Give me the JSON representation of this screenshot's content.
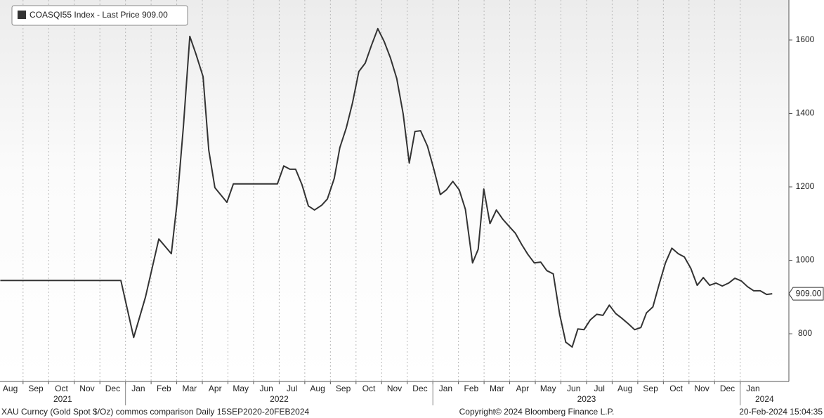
{
  "chart_data": {
    "type": "line",
    "series": [
      {
        "name": "COASQI55 Index - Last Price 909.00",
        "color": "#333333",
        "x": [
          0.11,
          4.82,
          5.32,
          5.78,
          6.3,
          6.79,
          7.01,
          7.26,
          7.51,
          7.75,
          8.03,
          8.25,
          8.49,
          8.96,
          9.21,
          10.93,
          11.18,
          11.42,
          11.64,
          11.89,
          12.14,
          12.38,
          12.66,
          12.88,
          13.15,
          13.37,
          13.62,
          13.86,
          14.11,
          14.36,
          14.6,
          14.85,
          15.1,
          15.34,
          15.59,
          15.84,
          16.08,
          16.3,
          16.52,
          16.79,
          17.04,
          17.29,
          17.53,
          17.78,
          18.03,
          18.27,
          18.55,
          18.77,
          18.99,
          19.23,
          19.48,
          19.73,
          19.97,
          20.22,
          20.47,
          20.71,
          20.96,
          21.21,
          21.45,
          21.7,
          21.95,
          22.19,
          22.44,
          22.66,
          22.9,
          23.15,
          23.4,
          23.64,
          23.89,
          24.14,
          24.38,
          24.63,
          24.88,
          25.12,
          25.34,
          25.59,
          25.84,
          26.08,
          26.33,
          26.58,
          26.82,
          27.07,
          27.32,
          27.56,
          27.81,
          28.05,
          28.3,
          28.55,
          28.79,
          29.04,
          29.29,
          29.53,
          29.78,
          30.03,
          30.25
        ],
        "values": [
          945,
          945,
          790,
          900,
          1058,
          1018,
          1154,
          1365,
          1610,
          1562,
          1500,
          1300,
          1198,
          1158,
          1208,
          1208,
          1257,
          1248,
          1248,
          1206,
          1148,
          1137,
          1150,
          1167,
          1223,
          1307,
          1361,
          1428,
          1514,
          1537,
          1585,
          1631,
          1596,
          1552,
          1495,
          1399,
          1265,
          1351,
          1353,
          1311,
          1248,
          1179,
          1192,
          1215,
          1192,
          1139,
          993,
          1030,
          1194,
          1100,
          1137,
          1112,
          1093,
          1074,
          1043,
          1016,
          993,
          995,
          972,
          963,
          853,
          777,
          764,
          813,
          811,
          838,
          853,
          850,
          878,
          855,
          842,
          827,
          811,
          817,
          857,
          873,
          936,
          993,
          1033,
          1018,
          1009,
          978,
          932,
          953,
          932,
          938,
          930,
          938,
          951,
          944,
          928,
          917,
          917,
          907,
          909
        ]
      }
    ],
    "last_value_tag": {
      "value": 909,
      "label": "909.00"
    },
    "xlim": [
      0.1,
      30.9
    ],
    "xticks": [
      {
        "value": 0,
        "label": "Aug"
      },
      {
        "value": 1,
        "label": "Sep"
      },
      {
        "value": 2,
        "label": "Oct"
      },
      {
        "value": 3,
        "label": "Nov"
      },
      {
        "value": 4,
        "label": "Dec"
      },
      {
        "value": 5,
        "label": "Jan"
      },
      {
        "value": 6,
        "label": "Feb"
      },
      {
        "value": 7,
        "label": "Mar"
      },
      {
        "value": 8,
        "label": "Apr"
      },
      {
        "value": 9,
        "label": "May"
      },
      {
        "value": 10,
        "label": "Jun"
      },
      {
        "value": 11,
        "label": "Jul"
      },
      {
        "value": 12,
        "label": "Aug"
      },
      {
        "value": 13,
        "label": "Sep"
      },
      {
        "value": 14,
        "label": "Oct"
      },
      {
        "value": 15,
        "label": "Nov"
      },
      {
        "value": 16,
        "label": "Dec"
      },
      {
        "value": 17,
        "label": "Jan"
      },
      {
        "value": 18,
        "label": "Feb"
      },
      {
        "value": 19,
        "label": "Mar"
      },
      {
        "value": 20,
        "label": "Apr"
      },
      {
        "value": 21,
        "label": "May"
      },
      {
        "value": 22,
        "label": "Jun"
      },
      {
        "value": 23,
        "label": "Jul"
      },
      {
        "value": 24,
        "label": "Aug"
      },
      {
        "value": 25,
        "label": "Sep"
      },
      {
        "value": 26,
        "label": "Oct"
      },
      {
        "value": 27,
        "label": "Nov"
      },
      {
        "value": 28,
        "label": "Dec"
      },
      {
        "value": 29,
        "label": "Jan"
      }
    ],
    "year_ticks": [
      {
        "value": 0,
        "label": "2021"
      },
      {
        "value": 5,
        "label": "2022"
      },
      {
        "value": 17,
        "label": "2023"
      },
      {
        "value": 29,
        "label": "2024"
      }
    ],
    "ylim": [
      670,
      1709
    ],
    "yticks": [
      800,
      1000,
      1200,
      1400,
      1600
    ],
    "grid": true,
    "footer": {
      "left": "XAU Curncy (Gold Spot  $/Oz) commos comparison  Daily 15SEP2020-20FEB2024",
      "center": "Copyright© 2024 Bloomberg Finance L.P.",
      "right": "20-Feb-2024 15:04:35"
    }
  }
}
